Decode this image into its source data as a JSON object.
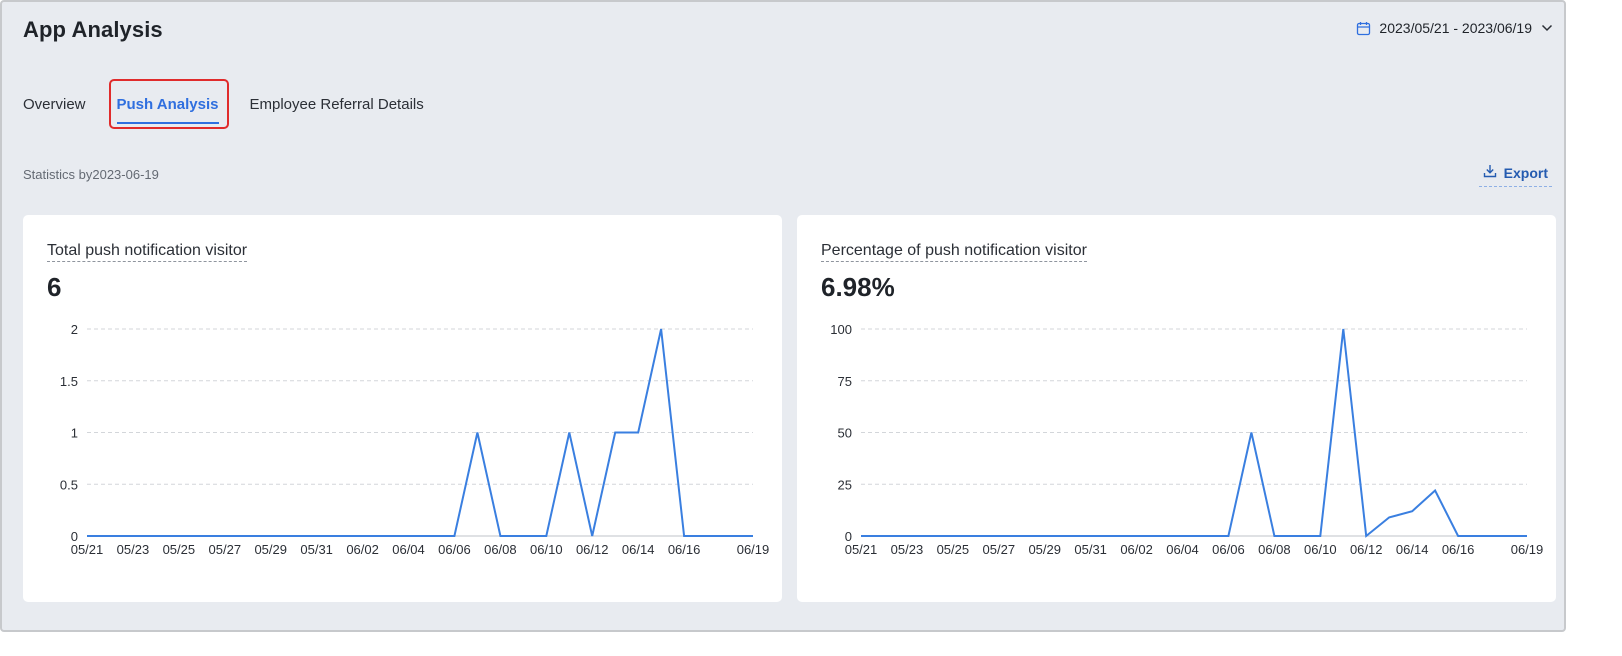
{
  "header": {
    "title": "App Analysis",
    "date_range": "2023/05/21 - 2023/06/19"
  },
  "tabs": [
    {
      "label": "Overview"
    },
    {
      "label": "Push Analysis"
    },
    {
      "label": "Employee Referral Details"
    }
  ],
  "active_tab": "Push Analysis",
  "stats_label": "Statistics by2023-06-19",
  "export_label": "Export",
  "cards": [
    {
      "label": "Total push notification visitor",
      "value": "6"
    },
    {
      "label": "Percentage of push notification visitor",
      "value": "6.98%"
    }
  ],
  "colors": {
    "accent": "#2f6fdf",
    "line": "#3a7fe0",
    "highlight": "#e02b2b"
  },
  "chart_data": [
    {
      "type": "line",
      "title": "Total push notification visitor",
      "x": [
        "05/21",
        "05/22",
        "05/23",
        "05/24",
        "05/25",
        "05/26",
        "05/27",
        "05/28",
        "05/29",
        "05/30",
        "05/31",
        "06/01",
        "06/02",
        "06/03",
        "06/04",
        "06/05",
        "06/06",
        "06/07",
        "06/08",
        "06/09",
        "06/10",
        "06/11",
        "06/12",
        "06/13",
        "06/14",
        "06/15",
        "06/16",
        "06/17",
        "06/18",
        "06/19"
      ],
      "values": [
        0,
        0,
        0,
        0,
        0,
        0,
        0,
        0,
        0,
        0,
        0,
        0,
        0,
        0,
        0,
        0,
        0,
        1,
        0,
        0,
        0,
        1,
        0,
        1,
        1,
        2,
        0,
        0,
        0,
        0
      ],
      "tick_labels": [
        "05/21",
        "05/23",
        "05/25",
        "05/27",
        "05/29",
        "05/31",
        "06/02",
        "06/04",
        "06/06",
        "06/08",
        "06/10",
        "06/12",
        "06/14",
        "06/16",
        "06/19"
      ],
      "yticks": [
        "0",
        "0.5",
        "1",
        "1.5",
        "2"
      ],
      "ylim": [
        0,
        2
      ],
      "grid": true
    },
    {
      "type": "line",
      "title": "Percentage of push notification visitor",
      "x": [
        "05/21",
        "05/22",
        "05/23",
        "05/24",
        "05/25",
        "05/26",
        "05/27",
        "05/28",
        "05/29",
        "05/30",
        "05/31",
        "06/01",
        "06/02",
        "06/03",
        "06/04",
        "06/05",
        "06/06",
        "06/07",
        "06/08",
        "06/09",
        "06/10",
        "06/11",
        "06/12",
        "06/13",
        "06/14",
        "06/15",
        "06/16",
        "06/17",
        "06/18",
        "06/19"
      ],
      "values": [
        0,
        0,
        0,
        0,
        0,
        0,
        0,
        0,
        0,
        0,
        0,
        0,
        0,
        0,
        0,
        0,
        0,
        50,
        0,
        0,
        0,
        100,
        0,
        9,
        12,
        22,
        0,
        0,
        0,
        0
      ],
      "tick_labels": [
        "05/21",
        "05/23",
        "05/25",
        "05/27",
        "05/29",
        "05/31",
        "06/02",
        "06/04",
        "06/06",
        "06/08",
        "06/10",
        "06/12",
        "06/14",
        "06/16",
        "06/19"
      ],
      "yticks": [
        "0",
        "25",
        "50",
        "75",
        "100"
      ],
      "ylim": [
        0,
        100
      ],
      "grid": true
    }
  ]
}
